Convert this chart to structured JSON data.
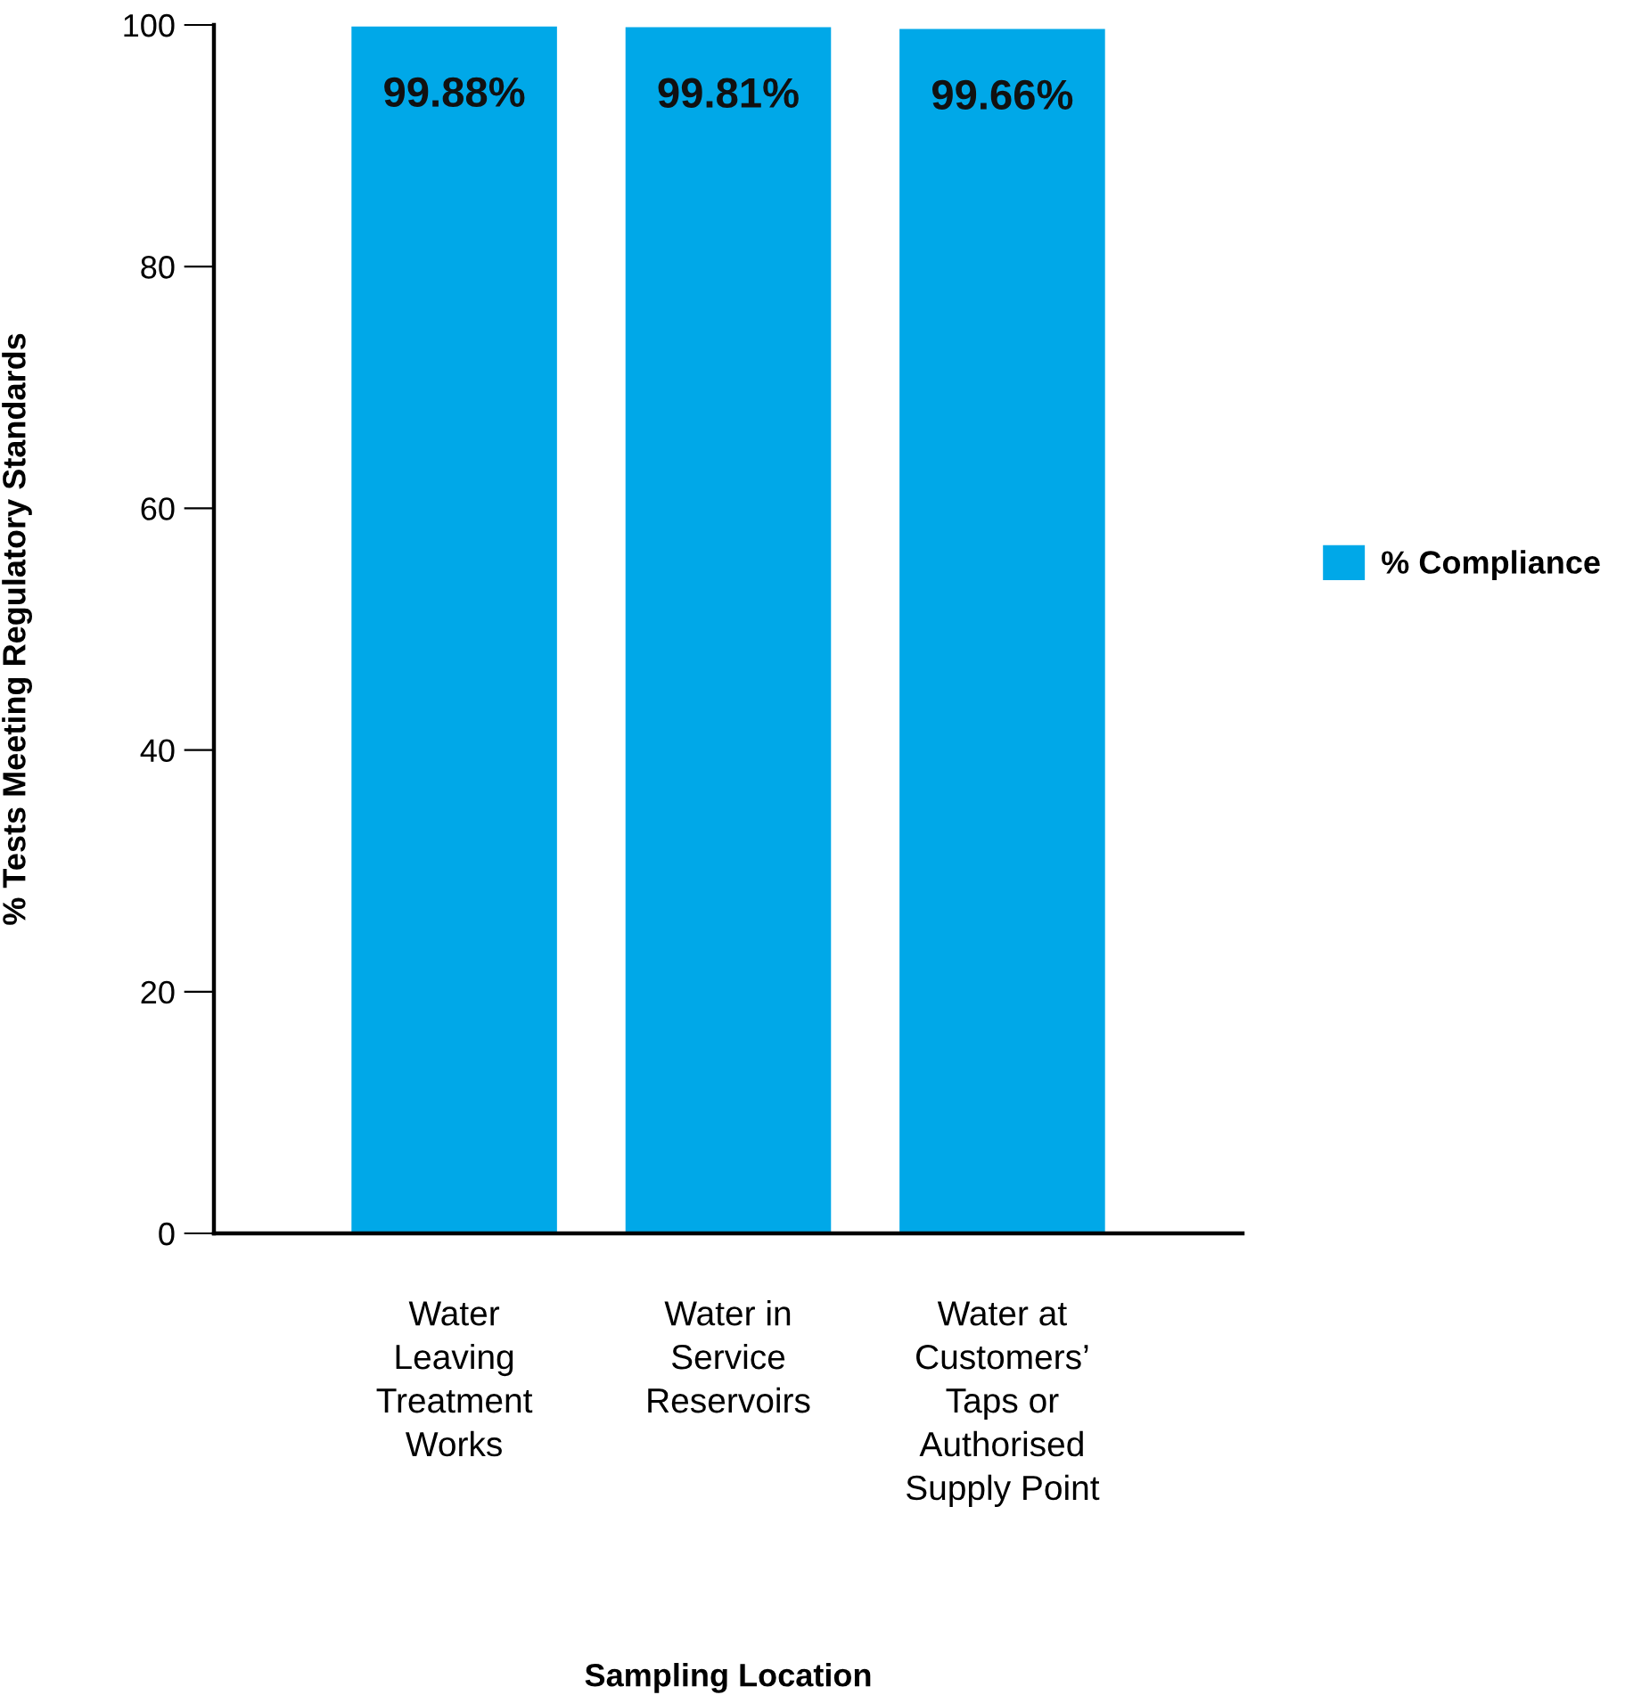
{
  "chart_data": {
    "type": "bar",
    "xlabel": "Sampling Location",
    "ylabel": "% Tests Meeting Regulatory Standards",
    "categories": [
      "Water\nLeaving\nTreatment\nWorks",
      "Water in\nService\nReservoirs",
      "Water at\nCustomers’\nTaps or\nAuthorised\nSupply Point"
    ],
    "series": [
      {
        "name": "% Compliance",
        "color": "#00a8e8",
        "values": [
          99.88,
          99.81,
          99.66
        ],
        "value_labels": [
          "99.88%",
          "99.81%",
          "99.66%"
        ]
      }
    ],
    "ylim": [
      0,
      100
    ],
    "yticks": [
      0,
      20,
      40,
      60,
      80,
      100
    ],
    "grid": false,
    "legend": "right"
  }
}
